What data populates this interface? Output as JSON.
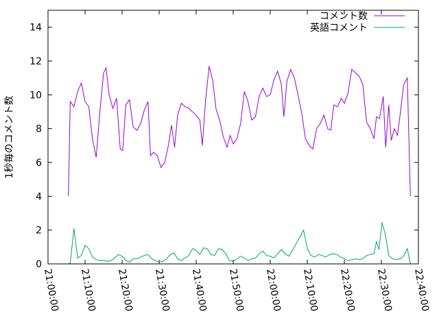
{
  "chart_data": {
    "type": "line",
    "title": "",
    "xlabel": "",
    "ylabel": "1秒毎のコメント数",
    "xlim": [
      "21:00:00",
      "22:40:00"
    ],
    "ylim": [
      0,
      15
    ],
    "x_ticks": [
      "21:00:00",
      "21:10:00",
      "21:20:00",
      "21:30:00",
      "21:40:00",
      "21:50:00",
      "22:00:00",
      "22:10:00",
      "22:20:00",
      "22:30:00",
      "22:40:00"
    ],
    "y_ticks": [
      0,
      2,
      4,
      6,
      8,
      10,
      12,
      14
    ],
    "grid": false,
    "legend_position": "top-right",
    "series": [
      {
        "name": "コメント数",
        "color": "#9400d3",
        "points": [
          [
            "21:05:30",
            4.0
          ],
          [
            "21:06:00",
            9.6
          ],
          [
            "21:07:00",
            9.3
          ],
          [
            "21:08:00",
            10.2
          ],
          [
            "21:09:00",
            10.7
          ],
          [
            "21:10:00",
            9.6
          ],
          [
            "21:11:00",
            9.3
          ],
          [
            "21:12:00",
            7.4
          ],
          [
            "21:13:00",
            6.3
          ],
          [
            "21:14:00",
            9.0
          ],
          [
            "21:15:00",
            11.3
          ],
          [
            "21:15:40",
            11.6
          ],
          [
            "21:16:30",
            10.0
          ],
          [
            "21:17:30",
            9.2
          ],
          [
            "21:18:30",
            9.8
          ],
          [
            "21:19:30",
            6.8
          ],
          [
            "21:20:10",
            6.7
          ],
          [
            "21:21:00",
            9.4
          ],
          [
            "21:22:00",
            9.7
          ],
          [
            "21:23:00",
            8.1
          ],
          [
            "21:24:00",
            7.9
          ],
          [
            "21:25:00",
            8.3
          ],
          [
            "21:26:00",
            9.1
          ],
          [
            "21:27:00",
            9.6
          ],
          [
            "21:27:40",
            6.4
          ],
          [
            "21:28:30",
            6.6
          ],
          [
            "21:29:30",
            6.4
          ],
          [
            "21:30:30",
            5.7
          ],
          [
            "21:31:30",
            6.0
          ],
          [
            "21:32:30",
            7.0
          ],
          [
            "21:33:20",
            8.2
          ],
          [
            "21:34:10",
            6.9
          ],
          [
            "21:35:00",
            8.8
          ],
          [
            "21:36:00",
            9.5
          ],
          [
            "21:37:00",
            9.3
          ],
          [
            "21:38:00",
            9.2
          ],
          [
            "21:39:00",
            9.0
          ],
          [
            "21:40:00",
            8.8
          ],
          [
            "21:41:00",
            8.5
          ],
          [
            "21:41:40",
            7.0
          ],
          [
            "21:42:30",
            9.6
          ],
          [
            "21:43:30",
            11.7
          ],
          [
            "21:44:30",
            10.8
          ],
          [
            "21:45:20",
            9.2
          ],
          [
            "21:46:20",
            8.5
          ],
          [
            "21:47:20",
            7.5
          ],
          [
            "21:48:20",
            6.9
          ],
          [
            "21:49:10",
            7.6
          ],
          [
            "21:50:00",
            7.1
          ],
          [
            "21:51:00",
            7.4
          ],
          [
            "21:52:00",
            8.3
          ],
          [
            "21:53:00",
            10.2
          ],
          [
            "21:54:00",
            9.6
          ],
          [
            "21:55:00",
            8.5
          ],
          [
            "21:56:00",
            8.7
          ],
          [
            "21:57:00",
            9.9
          ],
          [
            "21:58:00",
            10.4
          ],
          [
            "21:59:00",
            9.9
          ],
          [
            "22:00:00",
            10.0
          ],
          [
            "22:01:00",
            10.9
          ],
          [
            "22:02:00",
            11.4
          ],
          [
            "22:03:00",
            10.6
          ],
          [
            "22:03:40",
            8.7
          ],
          [
            "22:04:30",
            10.8
          ],
          [
            "22:05:30",
            11.5
          ],
          [
            "22:06:30",
            11.0
          ],
          [
            "22:07:30",
            10.0
          ],
          [
            "22:08:30",
            8.9
          ],
          [
            "22:09:30",
            7.4
          ],
          [
            "22:10:30",
            7.0
          ],
          [
            "22:11:30",
            6.8
          ],
          [
            "22:12:30",
            8.0
          ],
          [
            "22:13:30",
            8.3
          ],
          [
            "22:14:30",
            8.8
          ],
          [
            "22:15:30",
            8.0
          ],
          [
            "22:16:20",
            7.9
          ],
          [
            "22:17:10",
            9.4
          ],
          [
            "22:18:10",
            9.3
          ],
          [
            "22:19:10",
            9.8
          ],
          [
            "22:20:00",
            9.5
          ],
          [
            "22:21:00",
            10.1
          ],
          [
            "22:22:00",
            11.5
          ],
          [
            "22:23:00",
            11.3
          ],
          [
            "22:24:00",
            11.1
          ],
          [
            "22:25:00",
            10.6
          ],
          [
            "22:26:00",
            8.4
          ],
          [
            "22:27:00",
            8.0
          ],
          [
            "22:28:00",
            7.4
          ],
          [
            "22:28:40",
            8.7
          ],
          [
            "22:29:30",
            8.6
          ],
          [
            "22:30:30",
            9.9
          ],
          [
            "22:31:10",
            6.9
          ],
          [
            "22:32:00",
            9.4
          ],
          [
            "22:32:40",
            7.3
          ],
          [
            "22:33:30",
            8.0
          ],
          [
            "22:34:20",
            7.6
          ],
          [
            "22:35:10",
            9.0
          ],
          [
            "22:36:00",
            10.6
          ],
          [
            "22:37:00",
            11.0
          ],
          [
            "22:37:50",
            4.0
          ]
        ]
      },
      {
        "name": "英語コメント",
        "color": "#009e73",
        "points": [
          [
            "21:05:30",
            0.0
          ],
          [
            "21:06:00",
            0.05
          ],
          [
            "21:07:00",
            2.1
          ],
          [
            "21:08:00",
            0.35
          ],
          [
            "21:09:00",
            0.5
          ],
          [
            "21:10:00",
            1.1
          ],
          [
            "21:11:00",
            0.9
          ],
          [
            "21:12:00",
            0.4
          ],
          [
            "21:13:00",
            0.25
          ],
          [
            "21:14:00",
            0.2
          ],
          [
            "21:15:00",
            0.2
          ],
          [
            "21:16:00",
            0.15
          ],
          [
            "21:17:00",
            0.2
          ],
          [
            "21:18:00",
            0.35
          ],
          [
            "21:19:00",
            0.55
          ],
          [
            "21:20:00",
            0.45
          ],
          [
            "21:21:00",
            0.2
          ],
          [
            "21:22:00",
            0.1
          ],
          [
            "21:23:00",
            0.3
          ],
          [
            "21:24:00",
            0.3
          ],
          [
            "21:25:00",
            0.4
          ],
          [
            "21:26:00",
            0.5
          ],
          [
            "21:27:00",
            0.55
          ],
          [
            "21:28:00",
            0.3
          ],
          [
            "21:29:00",
            0.2
          ],
          [
            "21:30:00",
            0.1
          ],
          [
            "21:31:00",
            0.15
          ],
          [
            "21:32:00",
            0.3
          ],
          [
            "21:33:00",
            0.55
          ],
          [
            "21:34:00",
            0.65
          ],
          [
            "21:35:00",
            0.3
          ],
          [
            "21:36:00",
            0.2
          ],
          [
            "21:37:00",
            0.35
          ],
          [
            "21:38:00",
            0.5
          ],
          [
            "21:39:00",
            0.9
          ],
          [
            "21:40:00",
            0.8
          ],
          [
            "21:41:00",
            0.55
          ],
          [
            "21:42:00",
            0.95
          ],
          [
            "21:43:00",
            0.9
          ],
          [
            "21:44:00",
            0.55
          ],
          [
            "21:45:00",
            0.5
          ],
          [
            "21:46:00",
            0.9
          ],
          [
            "21:47:00",
            0.85
          ],
          [
            "21:48:00",
            0.6
          ],
          [
            "21:49:00",
            0.2
          ],
          [
            "21:50:00",
            0.15
          ],
          [
            "21:51:00",
            0.3
          ],
          [
            "21:52:00",
            0.45
          ],
          [
            "21:53:00",
            0.35
          ],
          [
            "21:54:00",
            0.2
          ],
          [
            "21:55:00",
            0.3
          ],
          [
            "21:56:00",
            0.35
          ],
          [
            "21:57:00",
            0.6
          ],
          [
            "21:58:00",
            0.75
          ],
          [
            "21:59:00",
            0.5
          ],
          [
            "22:00:00",
            0.45
          ],
          [
            "22:01:00",
            0.35
          ],
          [
            "22:02:00",
            0.6
          ],
          [
            "22:03:00",
            0.85
          ],
          [
            "22:04:00",
            0.6
          ],
          [
            "22:05:00",
            0.45
          ],
          [
            "22:06:00",
            0.8
          ],
          [
            "22:07:00",
            1.2
          ],
          [
            "22:08:00",
            1.6
          ],
          [
            "22:09:00",
            2.0
          ],
          [
            "22:10:00",
            0.9
          ],
          [
            "22:11:00",
            0.5
          ],
          [
            "22:12:00",
            0.4
          ],
          [
            "22:13:00",
            0.55
          ],
          [
            "22:14:00",
            0.5
          ],
          [
            "22:15:00",
            0.4
          ],
          [
            "22:16:00",
            0.55
          ],
          [
            "22:17:00",
            0.6
          ],
          [
            "22:18:00",
            0.55
          ],
          [
            "22:19:00",
            0.4
          ],
          [
            "22:20:00",
            0.3
          ],
          [
            "22:21:00",
            0.2
          ],
          [
            "22:22:00",
            0.25
          ],
          [
            "22:23:00",
            0.3
          ],
          [
            "22:24:00",
            0.25
          ],
          [
            "22:25:00",
            0.3
          ],
          [
            "22:26:00",
            0.5
          ],
          [
            "22:27:00",
            0.55
          ],
          [
            "22:28:00",
            0.6
          ],
          [
            "22:28:40",
            1.3
          ],
          [
            "22:29:20",
            0.85
          ],
          [
            "22:30:10",
            2.45
          ],
          [
            "22:31:00",
            1.8
          ],
          [
            "22:32:00",
            0.5
          ],
          [
            "22:33:00",
            0.3
          ],
          [
            "22:34:00",
            0.25
          ],
          [
            "22:35:00",
            0.3
          ],
          [
            "22:36:00",
            0.45
          ],
          [
            "22:37:00",
            0.9
          ],
          [
            "22:37:50",
            0.0
          ]
        ]
      }
    ]
  }
}
